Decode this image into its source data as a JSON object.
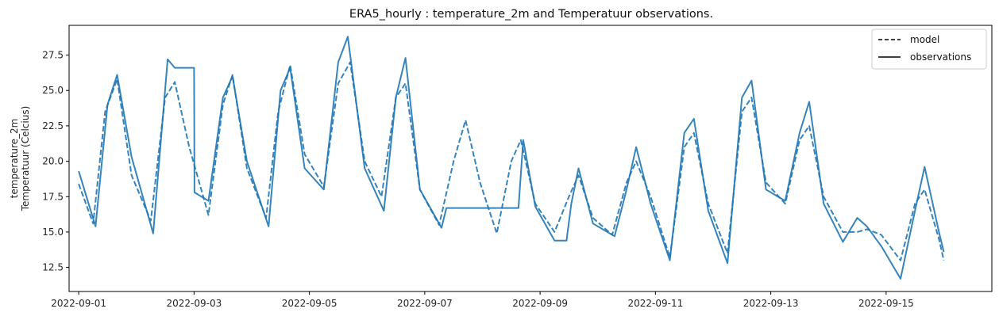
{
  "chart_data": {
    "type": "line",
    "title": "ERA5_hourly : temperature_2m and Temperatuur observations.",
    "ylabel_line1": "temperature_2m",
    "ylabel_line2": "Temperatuur (Celcius)",
    "xlabel": "",
    "xlim": [
      "2022-08-31T20:00",
      "2022-09-16T20:00"
    ],
    "ylim": [
      10.8,
      29.6
    ],
    "yticks": [
      12.5,
      15.0,
      17.5,
      20.0,
      22.5,
      25.0,
      27.5
    ],
    "ytick_labels": [
      "12.5",
      "15.0",
      "17.5",
      "20.0",
      "22.5",
      "25.0",
      "27.5"
    ],
    "xticks": [
      "2022-09-01",
      "2022-09-03",
      "2022-09-05",
      "2022-09-07",
      "2022-09-09",
      "2022-09-11",
      "2022-09-13",
      "2022-09-15"
    ],
    "legend": {
      "placement": "top-right",
      "entries": [
        {
          "label": "model",
          "style": "dashed"
        },
        {
          "label": "observations",
          "style": "solid"
        }
      ]
    },
    "line_color": "#1f77b4",
    "grid": false,
    "series": [
      {
        "name": "model",
        "style": "dashed",
        "points": [
          [
            "2022-09-01T00:00",
            18.4
          ],
          [
            "2022-09-01T06:00",
            15.6
          ],
          [
            "2022-09-01T11:00",
            23.5
          ],
          [
            "2022-09-01T16:00",
            25.8
          ],
          [
            "2022-09-01T22:00",
            19.0
          ],
          [
            "2022-09-02T06:00",
            15.8
          ],
          [
            "2022-09-02T12:00",
            24.5
          ],
          [
            "2022-09-02T16:00",
            25.6
          ],
          [
            "2022-09-02T22:00",
            21.0
          ],
          [
            "2022-09-03T06:00",
            16.2
          ],
          [
            "2022-09-03T12:00",
            24.0
          ],
          [
            "2022-09-03T16:00",
            26.1
          ],
          [
            "2022-09-03T22:00",
            19.5
          ],
          [
            "2022-09-04T06:00",
            16.0
          ],
          [
            "2022-09-04T11:00",
            23.5
          ],
          [
            "2022-09-04T16:00",
            26.8
          ],
          [
            "2022-09-04T22:00",
            20.5
          ],
          [
            "2022-09-05T06:00",
            18.2
          ],
          [
            "2022-09-05T12:00",
            25.5
          ],
          [
            "2022-09-05T17:00",
            27.0
          ],
          [
            "2022-09-05T23:00",
            20.0
          ],
          [
            "2022-09-06T06:00",
            17.5
          ],
          [
            "2022-09-06T12:00",
            24.5
          ],
          [
            "2022-09-06T16:00",
            25.5
          ],
          [
            "2022-09-06T22:00",
            18.0
          ],
          [
            "2022-09-07T06:00",
            15.5
          ],
          [
            "2022-09-07T12:00",
            20.0
          ],
          [
            "2022-09-07T17:00",
            22.9
          ],
          [
            "2022-09-07T23:00",
            18.5
          ],
          [
            "2022-09-08T06:00",
            14.9
          ],
          [
            "2022-09-08T12:00",
            20.0
          ],
          [
            "2022-09-08T16:00",
            21.5
          ],
          [
            "2022-09-08T22:00",
            17.0
          ],
          [
            "2022-09-09T06:00",
            15.0
          ],
          [
            "2022-09-09T12:00",
            17.5
          ],
          [
            "2022-09-09T16:00",
            19.0
          ],
          [
            "2022-09-09T22:00",
            16.0
          ],
          [
            "2022-09-10T06:00",
            14.8
          ],
          [
            "2022-09-10T12:00",
            18.5
          ],
          [
            "2022-09-10T16:00",
            20.0
          ],
          [
            "2022-09-10T22:00",
            17.5
          ],
          [
            "2022-09-11T06:00",
            13.2
          ],
          [
            "2022-09-11T12:00",
            21.0
          ],
          [
            "2022-09-11T16:00",
            22.0
          ],
          [
            "2022-09-11T22:00",
            17.0
          ],
          [
            "2022-09-12T06:00",
            13.5
          ],
          [
            "2022-09-12T12:00",
            23.5
          ],
          [
            "2022-09-12T16:00",
            24.5
          ],
          [
            "2022-09-12T22:00",
            18.5
          ],
          [
            "2022-09-13T06:00",
            17.0
          ],
          [
            "2022-09-13T12:00",
            21.5
          ],
          [
            "2022-09-13T16:00",
            22.5
          ],
          [
            "2022-09-13T22:00",
            17.5
          ],
          [
            "2022-09-14T06:00",
            15.0
          ],
          [
            "2022-09-14T12:00",
            15.0
          ],
          [
            "2022-09-14T16:00",
            15.2
          ],
          [
            "2022-09-14T22:00",
            14.8
          ],
          [
            "2022-09-15T06:00",
            13.0
          ],
          [
            "2022-09-15T12:00",
            17.0
          ],
          [
            "2022-09-15T16:00",
            18.0
          ],
          [
            "2022-09-15T22:00",
            14.5
          ],
          [
            "2022-09-16T00:00",
            13.0
          ]
        ]
      },
      {
        "name": "observations",
        "style": "solid",
        "points": [
          [
            "2022-09-01T00:00",
            19.3
          ],
          [
            "2022-09-01T07:00",
            15.4
          ],
          [
            "2022-09-01T12:00",
            24.0
          ],
          [
            "2022-09-01T16:00",
            26.1
          ],
          [
            "2022-09-01T22:00",
            20.3
          ],
          [
            "2022-09-02T07:00",
            14.9
          ],
          [
            "2022-09-02T13:00",
            27.2
          ],
          [
            "2022-09-02T16:00",
            26.6
          ],
          [
            "2022-09-03T00:00",
            26.6
          ],
          [
            "2022-09-03T00:10",
            17.8
          ],
          [
            "2022-09-03T06:00",
            17.2
          ],
          [
            "2022-09-03T12:00",
            24.5
          ],
          [
            "2022-09-03T16:00",
            26.0
          ],
          [
            "2022-09-03T22:00",
            20.0
          ],
          [
            "2022-09-04T07:00",
            15.4
          ],
          [
            "2022-09-04T12:00",
            25.0
          ],
          [
            "2022-09-04T16:00",
            26.6
          ],
          [
            "2022-09-04T22:00",
            19.5
          ],
          [
            "2022-09-05T06:00",
            18.0
          ],
          [
            "2022-09-05T12:00",
            27.0
          ],
          [
            "2022-09-05T16:00",
            28.8
          ],
          [
            "2022-09-05T23:00",
            19.5
          ],
          [
            "2022-09-06T07:00",
            16.5
          ],
          [
            "2022-09-06T12:00",
            24.5
          ],
          [
            "2022-09-06T16:00",
            27.3
          ],
          [
            "2022-09-06T22:00",
            18.0
          ],
          [
            "2022-09-07T07:00",
            15.3
          ],
          [
            "2022-09-07T09:00",
            16.7
          ],
          [
            "2022-09-08T15:00",
            16.7
          ],
          [
            "2022-09-08T17:00",
            21.5
          ],
          [
            "2022-09-08T22:00",
            16.8
          ],
          [
            "2022-09-09T06:00",
            14.4
          ],
          [
            "2022-09-09T11:00",
            14.4
          ],
          [
            "2022-09-09T13:00",
            17.0
          ],
          [
            "2022-09-09T16:00",
            19.5
          ],
          [
            "2022-09-09T22:00",
            15.6
          ],
          [
            "2022-09-10T07:00",
            14.7
          ],
          [
            "2022-09-10T12:00",
            18.0
          ],
          [
            "2022-09-10T16:00",
            21.0
          ],
          [
            "2022-09-10T22:00",
            17.0
          ],
          [
            "2022-09-11T06:00",
            13.0
          ],
          [
            "2022-09-11T12:00",
            22.0
          ],
          [
            "2022-09-11T16:00",
            23.0
          ],
          [
            "2022-09-11T22:00",
            16.5
          ],
          [
            "2022-09-12T06:00",
            12.8
          ],
          [
            "2022-09-12T12:00",
            24.5
          ],
          [
            "2022-09-12T16:00",
            25.7
          ],
          [
            "2022-09-12T22:00",
            18.0
          ],
          [
            "2022-09-13T06:00",
            17.2
          ],
          [
            "2022-09-13T12:00",
            22.0
          ],
          [
            "2022-09-13T16:00",
            24.2
          ],
          [
            "2022-09-13T22:00",
            17.0
          ],
          [
            "2022-09-14T06:00",
            14.3
          ],
          [
            "2022-09-14T12:00",
            16.0
          ],
          [
            "2022-09-14T16:00",
            15.4
          ],
          [
            "2022-09-14T22:00",
            14.0
          ],
          [
            "2022-09-15T06:00",
            11.7
          ],
          [
            "2022-09-15T12:00",
            16.5
          ],
          [
            "2022-09-15T16:00",
            19.6
          ],
          [
            "2022-09-15T22:00",
            15.0
          ],
          [
            "2022-09-16T00:00",
            13.6
          ]
        ]
      }
    ]
  }
}
